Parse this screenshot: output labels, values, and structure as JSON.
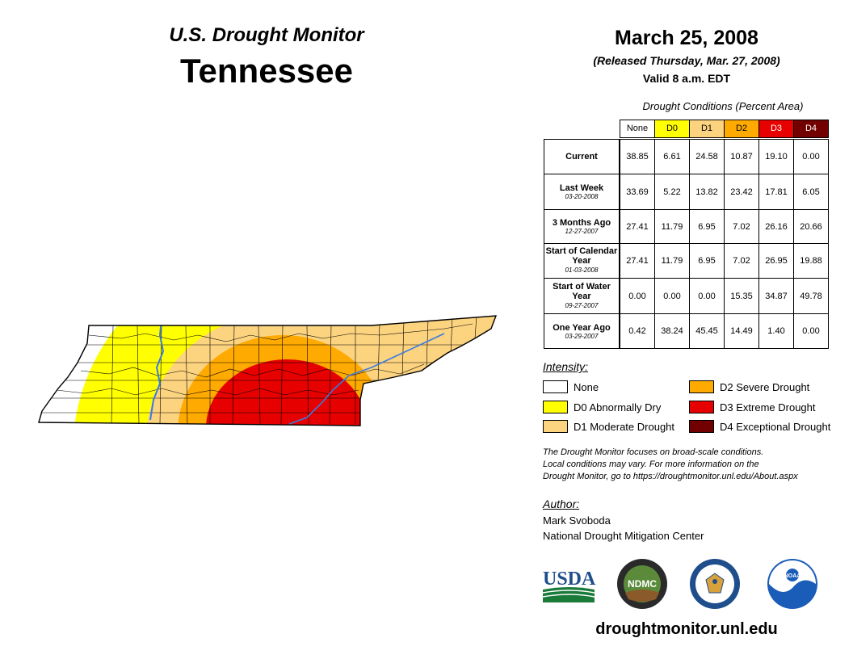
{
  "header": {
    "title": "U.S. Drought Monitor",
    "state": "Tennessee",
    "date": "March 25, 2008",
    "released": "(Released Thursday, Mar. 27, 2008)",
    "valid": "Valid 8 a.m. EDT"
  },
  "table": {
    "caption": "Drought Conditions (Percent Area)",
    "columns": [
      "None",
      "D0",
      "D1",
      "D2",
      "D3",
      "D4"
    ],
    "rows": [
      {
        "label": "Current",
        "date": "",
        "values": [
          "38.85",
          "6.61",
          "24.58",
          "10.87",
          "19.10",
          "0.00"
        ]
      },
      {
        "label": "Last Week",
        "date": "03-20-2008",
        "values": [
          "33.69",
          "5.22",
          "13.82",
          "23.42",
          "17.81",
          "6.05"
        ]
      },
      {
        "label": "3 Months Ago",
        "date": "12-27-2007",
        "values": [
          "27.41",
          "11.79",
          "6.95",
          "7.02",
          "26.16",
          "20.66"
        ]
      },
      {
        "label": "Start of Calendar Year",
        "date": "01-03-2008",
        "values": [
          "27.41",
          "11.79",
          "6.95",
          "7.02",
          "26.95",
          "19.88"
        ]
      },
      {
        "label": "Start of Water Year",
        "date": "09-27-2007",
        "values": [
          "0.00",
          "0.00",
          "0.00",
          "15.35",
          "34.87",
          "49.78"
        ]
      },
      {
        "label": "One Year Ago",
        "date": "03-29-2007",
        "values": [
          "0.42",
          "38.24",
          "45.45",
          "14.49",
          "1.40",
          "0.00"
        ]
      }
    ]
  },
  "legend": {
    "title": "Intensity:",
    "items": [
      {
        "label": "None",
        "color": "#ffffff"
      },
      {
        "label": "D0 Abnormally Dry",
        "color": "#ffff00"
      },
      {
        "label": "D1 Moderate Drought",
        "color": "#fcd37f"
      },
      {
        "label": "D2 Severe Drought",
        "color": "#ffaa00"
      },
      {
        "label": "D3 Extreme Drought",
        "color": "#e60000"
      },
      {
        "label": "D4 Exceptional Drought",
        "color": "#730000"
      }
    ]
  },
  "note": {
    "line1": "The Drought Monitor focuses on broad-scale conditions.",
    "line2": "Local conditions may vary. For more information on the",
    "line3": "Drought Monitor, go to https://droughtmonitor.unl.edu/About.aspx"
  },
  "author": {
    "title": "Author:",
    "name": "Mark Svoboda",
    "org": "National Drought Mitigation Center"
  },
  "logos": {
    "usda": "USDA",
    "ndmc": "NDMC",
    "noaa": "NOAA"
  },
  "website": "droughtmonitor.unl.edu",
  "colors": {
    "none": "#ffffff",
    "d0": "#ffff00",
    "d1": "#fcd37f",
    "d2": "#ffaa00",
    "d3": "#e60000",
    "d4": "#730000",
    "river": "#3a7be0",
    "county_line": "#000000"
  }
}
